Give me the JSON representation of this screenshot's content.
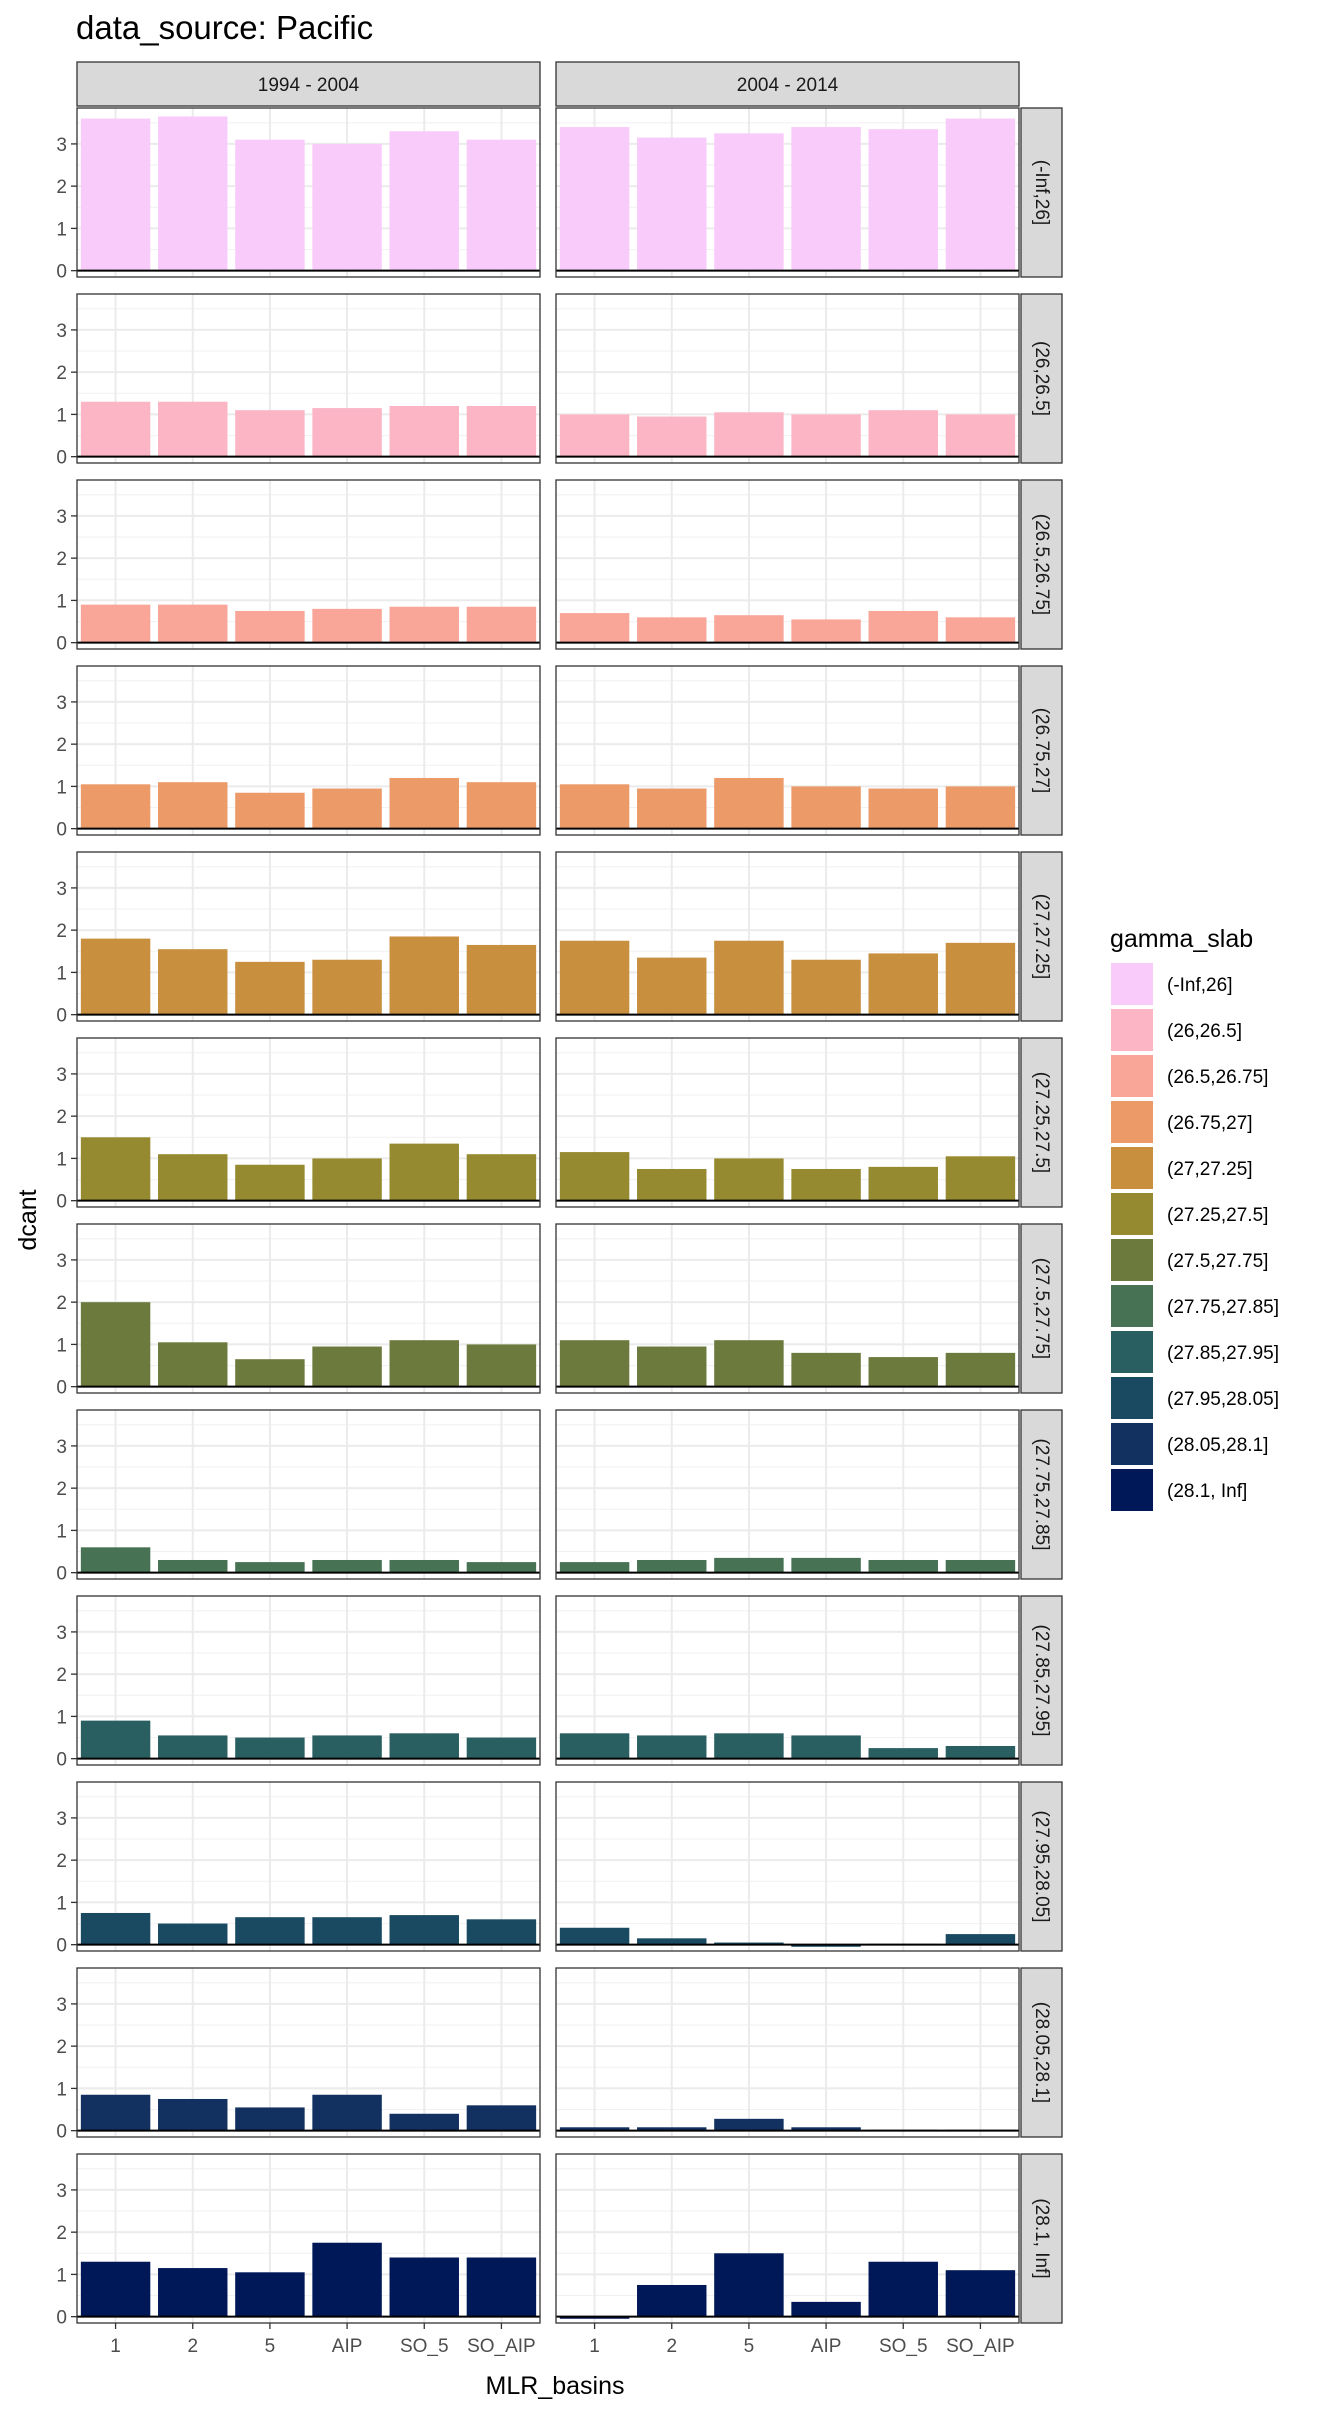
{
  "chart_data": {
    "type": "bar",
    "title": "data_source: Pacific",
    "xlabel": "MLR_basins",
    "ylabel": "dcant",
    "categories": [
      "1",
      "2",
      "5",
      "AIP",
      "SO_5",
      "SO_AIP"
    ],
    "y_ticks": [
      0,
      1,
      2,
      3
    ],
    "ylim": [
      -0.15,
      3.85
    ],
    "grid": true,
    "legend_position": "right",
    "legend_title": "gamma_slab",
    "columns": [
      "1994 - 2004",
      "2004 - 2014"
    ],
    "rows": [
      {
        "label": "(-Inf,26]",
        "color": "#F9CBFB",
        "values": [
          [
            3.6,
            3.65,
            3.1,
            3.0,
            3.3,
            3.1
          ],
          [
            3.4,
            3.15,
            3.25,
            3.4,
            3.35,
            3.6
          ]
        ]
      },
      {
        "label": "(26,26.5]",
        "color": "#FBB5C5",
        "values": [
          [
            1.3,
            1.3,
            1.1,
            1.15,
            1.2,
            1.2
          ],
          [
            1.0,
            0.95,
            1.05,
            1.0,
            1.1,
            1.0
          ]
        ]
      },
      {
        "label": "(26.5,26.75]",
        "color": "#F9A699",
        "values": [
          [
            0.9,
            0.9,
            0.75,
            0.8,
            0.85,
            0.85
          ],
          [
            0.7,
            0.6,
            0.65,
            0.55,
            0.75,
            0.6
          ]
        ]
      },
      {
        "label": "(26.75,27]",
        "color": "#ED9A69",
        "values": [
          [
            1.05,
            1.1,
            0.85,
            0.95,
            1.2,
            1.1
          ],
          [
            1.05,
            0.95,
            1.2,
            1.0,
            0.95,
            1.0
          ]
        ]
      },
      {
        "label": "(27,27.25]",
        "color": "#C88F3F",
        "values": [
          [
            1.8,
            1.55,
            1.25,
            1.3,
            1.85,
            1.65
          ],
          [
            1.75,
            1.35,
            1.75,
            1.3,
            1.45,
            1.7
          ]
        ]
      },
      {
        "label": "(27.25,27.5]",
        "color": "#968A30",
        "values": [
          [
            1.5,
            1.1,
            0.85,
            1.0,
            1.35,
            1.1
          ],
          [
            1.15,
            0.75,
            1.0,
            0.75,
            0.8,
            1.05
          ]
        ]
      },
      {
        "label": "(27.5,27.75]",
        "color": "#6C7A3D",
        "values": [
          [
            2.0,
            1.05,
            0.65,
            0.95,
            1.1,
            1.0
          ],
          [
            1.1,
            0.95,
            1.1,
            0.8,
            0.7,
            0.8
          ]
        ]
      },
      {
        "label": "(27.75,27.85]",
        "color": "#477254",
        "values": [
          [
            0.6,
            0.3,
            0.25,
            0.3,
            0.3,
            0.25
          ],
          [
            0.25,
            0.3,
            0.35,
            0.35,
            0.3,
            0.3
          ]
        ]
      },
      {
        "label": "(27.85,27.95]",
        "color": "#2A5F61",
        "values": [
          [
            0.9,
            0.55,
            0.5,
            0.55,
            0.6,
            0.5
          ],
          [
            0.6,
            0.55,
            0.6,
            0.55,
            0.25,
            0.3
          ]
        ]
      },
      {
        "label": "(27.95,28.05]",
        "color": "#194A62",
        "values": [
          [
            0.75,
            0.5,
            0.65,
            0.65,
            0.7,
            0.6
          ],
          [
            0.4,
            0.15,
            0.05,
            -0.05,
            0.02,
            0.25
          ]
        ]
      },
      {
        "label": "(28.05,28.1]",
        "color": "#123160",
        "values": [
          [
            0.85,
            0.75,
            0.55,
            0.85,
            0.4,
            0.6
          ],
          [
            0.08,
            0.08,
            0.28,
            0.08,
            0.02,
            0.02
          ]
        ]
      },
      {
        "label": "(28.1, Inf]",
        "color": "#001858",
        "values": [
          [
            1.3,
            1.15,
            1.05,
            1.75,
            1.4,
            1.4
          ],
          [
            -0.05,
            0.75,
            1.5,
            0.35,
            1.3,
            1.1
          ]
        ]
      }
    ]
  }
}
